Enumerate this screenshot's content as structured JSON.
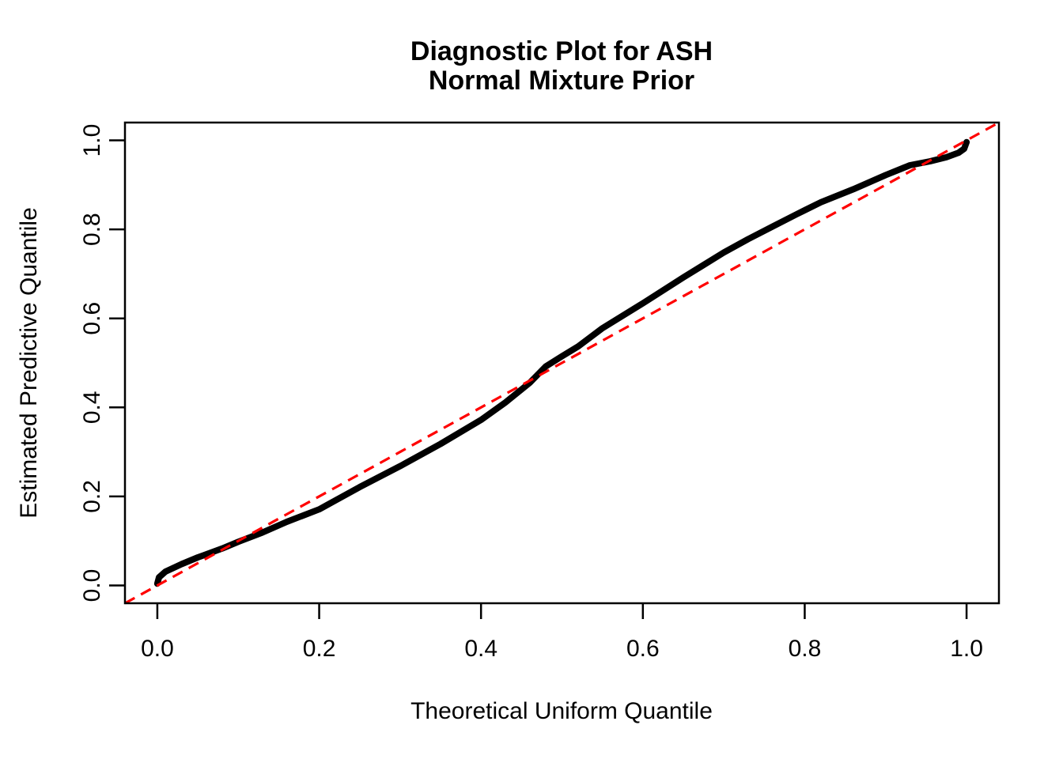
{
  "figure": {
    "background": "#ffffff",
    "title_line1": "Diagnostic Plot for ASH",
    "title_line2": "Normal Mixture Prior"
  },
  "chart_data": {
    "type": "line",
    "title": "Diagnostic Plot for ASH",
    "subtitle": "Normal Mixture Prior",
    "xlabel": "Theoretical Uniform Quantile",
    "ylabel": "Estimated Predictive Quantile",
    "xlim": [
      0,
      1
    ],
    "ylim": [
      0,
      1
    ],
    "axis_expansion": 0.04,
    "grid": false,
    "legend_position": "none",
    "box": true,
    "x_ticks": {
      "values": [
        0.0,
        0.2,
        0.4,
        0.6,
        0.8,
        1.0
      ],
      "labels": [
        "0.0",
        "0.2",
        "0.4",
        "0.6",
        "0.8",
        "1.0"
      ]
    },
    "y_ticks": {
      "values": [
        0.0,
        0.2,
        0.4,
        0.6,
        0.8,
        1.0
      ],
      "labels": [
        "0.0",
        "0.2",
        "0.4",
        "0.6",
        "0.8",
        "1.0"
      ]
    },
    "series": [
      {
        "name": "estimated-predictive-quantile-curve",
        "color": "#000000",
        "line_width": 8,
        "points": [
          [
            0.0,
            0.004
          ],
          [
            0.002,
            0.018
          ],
          [
            0.01,
            0.031
          ],
          [
            0.03,
            0.048
          ],
          [
            0.05,
            0.063
          ],
          [
            0.08,
            0.083
          ],
          [
            0.1,
            0.098
          ],
          [
            0.13,
            0.119
          ],
          [
            0.16,
            0.143
          ],
          [
            0.2,
            0.171
          ],
          [
            0.25,
            0.221
          ],
          [
            0.3,
            0.268
          ],
          [
            0.35,
            0.318
          ],
          [
            0.4,
            0.372
          ],
          [
            0.43,
            0.411
          ],
          [
            0.46,
            0.455
          ],
          [
            0.48,
            0.492
          ],
          [
            0.5,
            0.515
          ],
          [
            0.52,
            0.537
          ],
          [
            0.55,
            0.578
          ],
          [
            0.6,
            0.634
          ],
          [
            0.65,
            0.692
          ],
          [
            0.7,
            0.748
          ],
          [
            0.73,
            0.778
          ],
          [
            0.76,
            0.806
          ],
          [
            0.79,
            0.834
          ],
          [
            0.82,
            0.861
          ],
          [
            0.86,
            0.89
          ],
          [
            0.9,
            0.922
          ],
          [
            0.93,
            0.944
          ],
          [
            0.955,
            0.953
          ],
          [
            0.975,
            0.962
          ],
          [
            0.99,
            0.972
          ],
          [
            0.997,
            0.981
          ],
          [
            1.0,
            0.996
          ]
        ]
      }
    ],
    "reference_line": {
      "name": "identity-line",
      "equation": "y = x",
      "intercept": 0,
      "slope": 1,
      "color": "#FF0000",
      "style": "dashed",
      "line_width": 3.2
    }
  },
  "colors": {
    "curve": "#000000",
    "reference": "#FF0000",
    "axis": "#000000",
    "background": "#ffffff"
  }
}
